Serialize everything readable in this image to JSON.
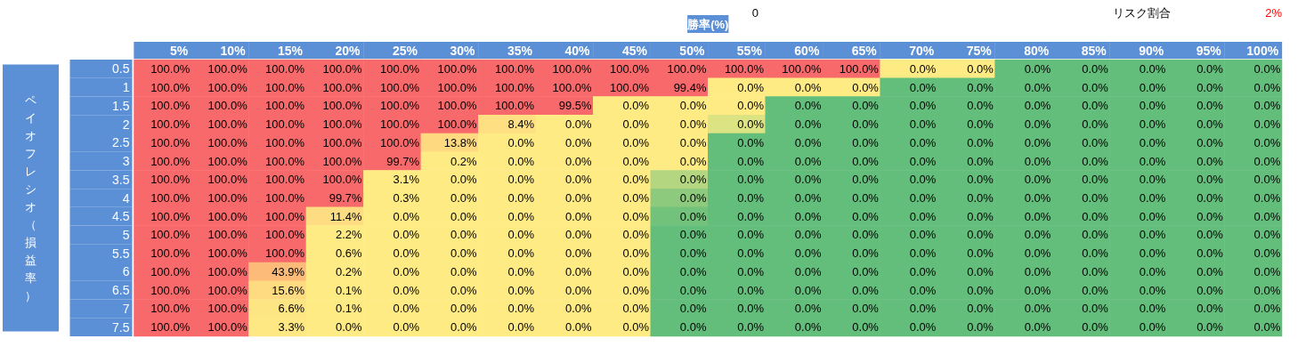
{
  "chart_data": {
    "type": "heatmap",
    "title": "勝率(%)",
    "ylabel": "ペイオフレシオ（損益率）",
    "annotations": [
      "0",
      "リスク割合",
      "2%"
    ],
    "categories": [
      "5%",
      "10%",
      "15%",
      "20%",
      "25%",
      "30%",
      "35%",
      "40%",
      "45%",
      "50%",
      "55%",
      "60%",
      "65%",
      "70%",
      "75%",
      "80%",
      "85%",
      "90%",
      "95%",
      "100%"
    ],
    "y_categories": [
      "0.5",
      "1",
      "1.5",
      "2",
      "2.5",
      "3",
      "3.5",
      "4",
      "4.5",
      "5",
      "5.5",
      "6",
      "6.5",
      "7",
      "7.5"
    ],
    "cells": [
      [
        100,
        100,
        100,
        100,
        100,
        100,
        100,
        100,
        100,
        100,
        100,
        100,
        100,
        0,
        0,
        0,
        0,
        0,
        0,
        0
      ],
      [
        100,
        100,
        100,
        100,
        100,
        100,
        100,
        100,
        100,
        99.4,
        0,
        0,
        0,
        0,
        0,
        0,
        0,
        0,
        0,
        0
      ],
      [
        100,
        100,
        100,
        100,
        100,
        100,
        100,
        99.5,
        0,
        0,
        0,
        0,
        0,
        0,
        0,
        0,
        0,
        0,
        0,
        0
      ],
      [
        100,
        100,
        100,
        100,
        100,
        100,
        8.4,
        0,
        0,
        0,
        0,
        0,
        0,
        0,
        0,
        0,
        0,
        0,
        0,
        0
      ],
      [
        100,
        100,
        100,
        100,
        100,
        13.8,
        0,
        0,
        0,
        0,
        0,
        0,
        0,
        0,
        0,
        0,
        0,
        0,
        0,
        0
      ],
      [
        100,
        100,
        100,
        100,
        99.7,
        0.2,
        0,
        0,
        0,
        0,
        0,
        0,
        0,
        0,
        0,
        0,
        0,
        0,
        0,
        0
      ],
      [
        100,
        100,
        100,
        100,
        3.1,
        0,
        0,
        0,
        0,
        0,
        0,
        0,
        0,
        0,
        0,
        0,
        0,
        0,
        0,
        0
      ],
      [
        100,
        100,
        100,
        99.7,
        0.3,
        0,
        0,
        0,
        0,
        0,
        0,
        0,
        0,
        0,
        0,
        0,
        0,
        0,
        0,
        0
      ],
      [
        100,
        100,
        100,
        11.4,
        0,
        0,
        0,
        0,
        0,
        0,
        0,
        0,
        0,
        0,
        0,
        0,
        0,
        0,
        0,
        0
      ],
      [
        100,
        100,
        100,
        2.2,
        0,
        0,
        0,
        0,
        0,
        0,
        0,
        0,
        0,
        0,
        0,
        0,
        0,
        0,
        0,
        0
      ],
      [
        100,
        100,
        100,
        0.6,
        0,
        0,
        0,
        0,
        0,
        0,
        0,
        0,
        0,
        0,
        0,
        0,
        0,
        0,
        0,
        0
      ],
      [
        100,
        100,
        43.9,
        0.2,
        0,
        0,
        0,
        0,
        0,
        0,
        0,
        0,
        0,
        0,
        0,
        0,
        0,
        0,
        0,
        0
      ],
      [
        100,
        100,
        15.6,
        0.1,
        0,
        0,
        0,
        0,
        0,
        0,
        0,
        0,
        0,
        0,
        0,
        0,
        0,
        0,
        0,
        0
      ],
      [
        100,
        100,
        6.6,
        0.1,
        0,
        0,
        0,
        0,
        0,
        0,
        0,
        0,
        0,
        0,
        0,
        0,
        0,
        0,
        0,
        0
      ],
      [
        100,
        100,
        3.3,
        0,
        0,
        0,
        0,
        0,
        0,
        0,
        0,
        0,
        0,
        0,
        0,
        0,
        0,
        0,
        0,
        0
      ]
    ],
    "cell_labels": [
      [
        "100.0%",
        "100.0%",
        "100.0%",
        "100.0%",
        "100.0%",
        "100.0%",
        "100.0%",
        "100.0%",
        "100.0%",
        "100.0%",
        "100.0%",
        "100.0%",
        "100.0%",
        "0.0%",
        "0.0%",
        "0.0%",
        "0.0%",
        "0.0%",
        "0.0%",
        "0.0%"
      ],
      [
        "100.0%",
        "100.0%",
        "100.0%",
        "100.0%",
        "100.0%",
        "100.0%",
        "100.0%",
        "100.0%",
        "100.0%",
        "99.4%",
        "0.0%",
        "0.0%",
        "0.0%",
        "0.0%",
        "0.0%",
        "0.0%",
        "0.0%",
        "0.0%",
        "0.0%",
        "0.0%"
      ],
      [
        "100.0%",
        "100.0%",
        "100.0%",
        "100.0%",
        "100.0%",
        "100.0%",
        "100.0%",
        "99.5%",
        "0.0%",
        "0.0%",
        "0.0%",
        "0.0%",
        "0.0%",
        "0.0%",
        "0.0%",
        "0.0%",
        "0.0%",
        "0.0%",
        "0.0%",
        "0.0%"
      ],
      [
        "100.0%",
        "100.0%",
        "100.0%",
        "100.0%",
        "100.0%",
        "100.0%",
        "8.4%",
        "0.0%",
        "0.0%",
        "0.0%",
        "0.0%",
        "0.0%",
        "0.0%",
        "0.0%",
        "0.0%",
        "0.0%",
        "0.0%",
        "0.0%",
        "0.0%",
        "0.0%"
      ],
      [
        "100.0%",
        "100.0%",
        "100.0%",
        "100.0%",
        "100.0%",
        "13.8%",
        "0.0%",
        "0.0%",
        "0.0%",
        "0.0%",
        "0.0%",
        "0.0%",
        "0.0%",
        "0.0%",
        "0.0%",
        "0.0%",
        "0.0%",
        "0.0%",
        "0.0%",
        "0.0%"
      ],
      [
        "100.0%",
        "100.0%",
        "100.0%",
        "100.0%",
        "99.7%",
        "0.2%",
        "0.0%",
        "0.0%",
        "0.0%",
        "0.0%",
        "0.0%",
        "0.0%",
        "0.0%",
        "0.0%",
        "0.0%",
        "0.0%",
        "0.0%",
        "0.0%",
        "0.0%",
        "0.0%"
      ],
      [
        "100.0%",
        "100.0%",
        "100.0%",
        "100.0%",
        "3.1%",
        "0.0%",
        "0.0%",
        "0.0%",
        "0.0%",
        "0.0%",
        "0.0%",
        "0.0%",
        "0.0%",
        "0.0%",
        "0.0%",
        "0.0%",
        "0.0%",
        "0.0%",
        "0.0%",
        "0.0%"
      ],
      [
        "100.0%",
        "100.0%",
        "100.0%",
        "99.7%",
        "0.3%",
        "0.0%",
        "0.0%",
        "0.0%",
        "0.0%",
        "0.0%",
        "0.0%",
        "0.0%",
        "0.0%",
        "0.0%",
        "0.0%",
        "0.0%",
        "0.0%",
        "0.0%",
        "0.0%",
        "0.0%"
      ],
      [
        "100.0%",
        "100.0%",
        "100.0%",
        "11.4%",
        "0.0%",
        "0.0%",
        "0.0%",
        "0.0%",
        "0.0%",
        "0.0%",
        "0.0%",
        "0.0%",
        "0.0%",
        "0.0%",
        "0.0%",
        "0.0%",
        "0.0%",
        "0.0%",
        "0.0%",
        "0.0%"
      ],
      [
        "100.0%",
        "100.0%",
        "100.0%",
        "2.2%",
        "0.0%",
        "0.0%",
        "0.0%",
        "0.0%",
        "0.0%",
        "0.0%",
        "0.0%",
        "0.0%",
        "0.0%",
        "0.0%",
        "0.0%",
        "0.0%",
        "0.0%",
        "0.0%",
        "0.0%",
        "0.0%"
      ],
      [
        "100.0%",
        "100.0%",
        "100.0%",
        "0.6%",
        "0.0%",
        "0.0%",
        "0.0%",
        "0.0%",
        "0.0%",
        "0.0%",
        "0.0%",
        "0.0%",
        "0.0%",
        "0.0%",
        "0.0%",
        "0.0%",
        "0.0%",
        "0.0%",
        "0.0%",
        "0.0%"
      ],
      [
        "100.0%",
        "100.0%",
        "43.9%",
        "0.2%",
        "0.0%",
        "0.0%",
        "0.0%",
        "0.0%",
        "0.0%",
        "0.0%",
        "0.0%",
        "0.0%",
        "0.0%",
        "0.0%",
        "0.0%",
        "0.0%",
        "0.0%",
        "0.0%",
        "0.0%",
        "0.0%"
      ],
      [
        "100.0%",
        "100.0%",
        "15.6%",
        "0.1%",
        "0.0%",
        "0.0%",
        "0.0%",
        "0.0%",
        "0.0%",
        "0.0%",
        "0.0%",
        "0.0%",
        "0.0%",
        "0.0%",
        "0.0%",
        "0.0%",
        "0.0%",
        "0.0%",
        "0.0%",
        "0.0%"
      ],
      [
        "100.0%",
        "100.0%",
        "6.6%",
        "0.1%",
        "0.0%",
        "0.0%",
        "0.0%",
        "0.0%",
        "0.0%",
        "0.0%",
        "0.0%",
        "0.0%",
        "0.0%",
        "0.0%",
        "0.0%",
        "0.0%",
        "0.0%",
        "0.0%",
        "0.0%",
        "0.0%"
      ],
      [
        "100.0%",
        "100.0%",
        "3.3%",
        "0.0%",
        "0.0%",
        "0.0%",
        "0.0%",
        "0.0%",
        "0.0%",
        "0.0%",
        "0.0%",
        "0.0%",
        "0.0%",
        "0.0%",
        "0.0%",
        "0.0%",
        "0.0%",
        "0.0%",
        "0.0%",
        "0.0%"
      ]
    ],
    "colors": [
      [
        "#f8696b",
        "#f8696b",
        "#f8696b",
        "#f8696b",
        "#f8696b",
        "#f8696b",
        "#f8696b",
        "#f8696b",
        "#f8696b",
        "#f8696b",
        "#f8696b",
        "#f8696b",
        "#f8696b",
        "#ffeb84",
        "#ffeb84",
        "#63be7b",
        "#63be7b",
        "#63be7b",
        "#63be7b",
        "#63be7b"
      ],
      [
        "#f8696b",
        "#f8696b",
        "#f8696b",
        "#f8696b",
        "#f8696b",
        "#f8696b",
        "#f8696b",
        "#f8696b",
        "#f8696b",
        "#f8696b",
        "#ffeb84",
        "#ffeb84",
        "#ffeb84",
        "#63be7b",
        "#63be7b",
        "#63be7b",
        "#63be7b",
        "#63be7b",
        "#63be7b",
        "#63be7b"
      ],
      [
        "#f8696b",
        "#f8696b",
        "#f8696b",
        "#f8696b",
        "#f8696b",
        "#f8696b",
        "#f8696b",
        "#f8696b",
        "#ffeb84",
        "#ffeb84",
        "#ffeb84",
        "#63be7b",
        "#63be7b",
        "#63be7b",
        "#63be7b",
        "#63be7b",
        "#63be7b",
        "#63be7b",
        "#63be7b",
        "#63be7b"
      ],
      [
        "#f8696b",
        "#f8696b",
        "#f8696b",
        "#f8696b",
        "#f8696b",
        "#f8696b",
        "#fee082",
        "#ffeb84",
        "#ffeb84",
        "#ffeb84",
        "#dce383",
        "#63be7b",
        "#63be7b",
        "#63be7b",
        "#63be7b",
        "#63be7b",
        "#63be7b",
        "#63be7b",
        "#63be7b",
        "#63be7b"
      ],
      [
        "#f8696b",
        "#f8696b",
        "#f8696b",
        "#f8696b",
        "#f8696b",
        "#fed980",
        "#ffeb84",
        "#ffeb84",
        "#ffeb84",
        "#ffeb84",
        "#63be7b",
        "#63be7b",
        "#63be7b",
        "#63be7b",
        "#63be7b",
        "#63be7b",
        "#63be7b",
        "#63be7b",
        "#63be7b",
        "#63be7b"
      ],
      [
        "#f8696b",
        "#f8696b",
        "#f8696b",
        "#f8696b",
        "#f8696b",
        "#ffeb84",
        "#ffeb84",
        "#ffeb84",
        "#ffeb84",
        "#ffeb84",
        "#63be7b",
        "#63be7b",
        "#63be7b",
        "#63be7b",
        "#63be7b",
        "#63be7b",
        "#63be7b",
        "#63be7b",
        "#63be7b",
        "#63be7b"
      ],
      [
        "#f8696b",
        "#f8696b",
        "#f8696b",
        "#f8696b",
        "#ffeb84",
        "#ffeb84",
        "#ffeb84",
        "#ffeb84",
        "#ffeb84",
        "#b5d680",
        "#63be7b",
        "#63be7b",
        "#63be7b",
        "#63be7b",
        "#63be7b",
        "#63be7b",
        "#63be7b",
        "#63be7b",
        "#63be7b",
        "#63be7b"
      ],
      [
        "#f8696b",
        "#f8696b",
        "#f8696b",
        "#f8696b",
        "#ffeb84",
        "#ffeb84",
        "#ffeb84",
        "#ffeb84",
        "#ffeb84",
        "#8dca7d",
        "#63be7b",
        "#63be7b",
        "#63be7b",
        "#63be7b",
        "#63be7b",
        "#63be7b",
        "#63be7b",
        "#63be7b",
        "#63be7b",
        "#63be7b"
      ],
      [
        "#f8696b",
        "#f8696b",
        "#f8696b",
        "#fedc81",
        "#ffeb84",
        "#ffeb84",
        "#ffeb84",
        "#ffeb84",
        "#ffeb84",
        "#72c27c",
        "#63be7b",
        "#63be7b",
        "#63be7b",
        "#63be7b",
        "#63be7b",
        "#63be7b",
        "#63be7b",
        "#63be7b",
        "#63be7b",
        "#63be7b"
      ],
      [
        "#f8696b",
        "#f8696b",
        "#f8696b",
        "#ffeb84",
        "#ffeb84",
        "#ffeb84",
        "#ffeb84",
        "#ffeb84",
        "#ffeb84",
        "#63be7b",
        "#63be7b",
        "#63be7b",
        "#63be7b",
        "#63be7b",
        "#63be7b",
        "#63be7b",
        "#63be7b",
        "#63be7b",
        "#63be7b",
        "#63be7b"
      ],
      [
        "#f8696b",
        "#f8696b",
        "#f8696b",
        "#ffeb84",
        "#ffeb84",
        "#ffeb84",
        "#ffeb84",
        "#ffeb84",
        "#ffeb84",
        "#63be7b",
        "#63be7b",
        "#63be7b",
        "#63be7b",
        "#63be7b",
        "#63be7b",
        "#63be7b",
        "#63be7b",
        "#63be7b",
        "#63be7b",
        "#63be7b"
      ],
      [
        "#f8696b",
        "#f8696b",
        "#fcbb79",
        "#ffeb84",
        "#ffeb84",
        "#ffeb84",
        "#ffeb84",
        "#ffeb84",
        "#ffeb84",
        "#63be7b",
        "#63be7b",
        "#63be7b",
        "#63be7b",
        "#63be7b",
        "#63be7b",
        "#63be7b",
        "#63be7b",
        "#63be7b",
        "#63be7b",
        "#63be7b"
      ],
      [
        "#f8696b",
        "#f8696b",
        "#fedb81",
        "#ffeb84",
        "#ffeb84",
        "#ffeb84",
        "#ffeb84",
        "#ffeb84",
        "#ffeb84",
        "#63be7b",
        "#63be7b",
        "#63be7b",
        "#63be7b",
        "#63be7b",
        "#63be7b",
        "#63be7b",
        "#63be7b",
        "#63be7b",
        "#63be7b",
        "#63be7b"
      ],
      [
        "#f8696b",
        "#f8696b",
        "#fee583",
        "#ffeb84",
        "#ffeb84",
        "#ffeb84",
        "#ffeb84",
        "#ffeb84",
        "#ffeb84",
        "#63be7b",
        "#63be7b",
        "#63be7b",
        "#63be7b",
        "#63be7b",
        "#63be7b",
        "#63be7b",
        "#63be7b",
        "#63be7b",
        "#63be7b",
        "#63be7b"
      ],
      [
        "#f8696b",
        "#f8696b",
        "#fee883",
        "#ffeb84",
        "#ffeb84",
        "#ffeb84",
        "#ffeb84",
        "#ffeb84",
        "#ffeb84",
        "#63be7b",
        "#63be7b",
        "#63be7b",
        "#63be7b",
        "#63be7b",
        "#63be7b",
        "#63be7b",
        "#63be7b",
        "#63be7b",
        "#63be7b",
        "#63be7b"
      ]
    ]
  }
}
